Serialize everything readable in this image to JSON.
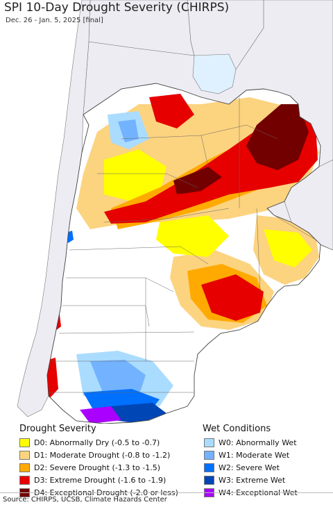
{
  "title": "SPI 10-Day Drought Severity (CHIRPS)",
  "subtitle": "Dec. 26 - Jan. 5, 2025 [final]",
  "legend": {
    "drought": {
      "heading": "Drought Severity",
      "items": [
        {
          "label": "D0: Abnormally Dry (-0.5 to -0.7)",
          "color": "#ffff00"
        },
        {
          "label": "D1: Moderate Drought (-0.8 to -1.2)",
          "color": "#fcd37f"
        },
        {
          "label": "D2: Severe Drought (-1.3 to -1.5)",
          "color": "#ffaa00"
        },
        {
          "label": "D3: Extreme Drought (-1.6 to -1.9)",
          "color": "#e60000"
        },
        {
          "label": "D4: Exceptional Drought (-2.0 or less)",
          "color": "#730000"
        }
      ]
    },
    "wet": {
      "heading": "Wet Conditions",
      "items": [
        {
          "label": "W0: Abnormally Wet",
          "color": "#aadcff"
        },
        {
          "label": "W1: Moderate Wet",
          "color": "#73b2ff"
        },
        {
          "label": "W2: Severe Wet",
          "color": "#0070ff"
        },
        {
          "label": "W3: Extreme Wet",
          "color": "#0046b4"
        },
        {
          "label": "W4: Exceptional Wet",
          "color": "#aa00ff"
        }
      ]
    }
  },
  "source": "Source: CHIRPS, UCSB, Climate Hazards Center",
  "colors": {
    "ocean": "#ffffff",
    "outside_land": "#ececf2",
    "border": "#444444"
  }
}
